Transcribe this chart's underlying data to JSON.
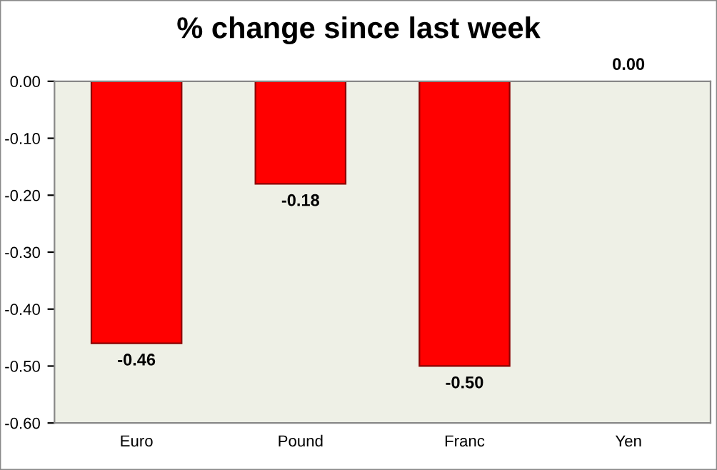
{
  "chart_data": {
    "type": "bar",
    "title": "% change since last week",
    "categories": [
      "Euro",
      "Pound",
      "Franc",
      "Yen"
    ],
    "values": [
      -0.46,
      -0.18,
      -0.5,
      0.0
    ],
    "value_labels": [
      "-0.46",
      "-0.18",
      "-0.50",
      "0.00"
    ],
    "color": "#ff0000",
    "ylim": [
      -0.6,
      0.0
    ],
    "yticks": [
      {
        "value": -0.6,
        "label": "-0.60"
      },
      {
        "value": -0.5,
        "label": "-0.50"
      },
      {
        "value": -0.4,
        "label": "-0.40"
      },
      {
        "value": -0.3,
        "label": "-0.30"
      },
      {
        "value": -0.2,
        "label": "-0.20"
      },
      {
        "value": -0.1,
        "label": "-0.10"
      },
      {
        "value": 0.0,
        "label": "0.00"
      }
    ],
    "grid": false,
    "legend": false
  }
}
